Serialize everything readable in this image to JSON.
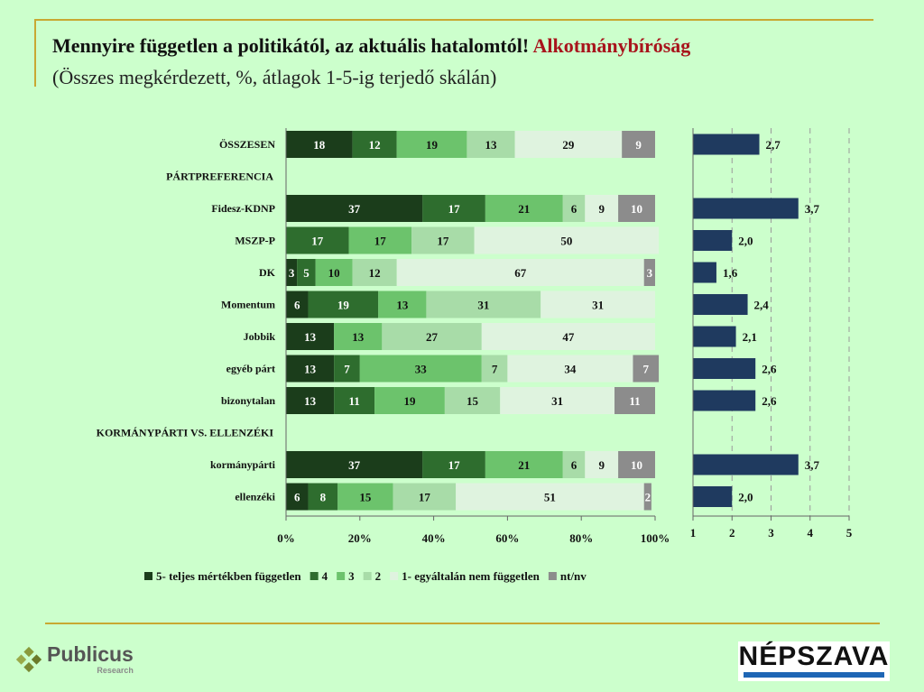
{
  "header": {
    "title_main": "Mennyire független a politikától, az aktuális hatalomtól!",
    "title_highlight": "Alkotmánybíróság",
    "subtitle": "(Összes megkérdezett, %, átlagok 1-5-ig terjedő skálán)"
  },
  "chart_data": [
    {
      "type": "bar",
      "orientation": "horizontal",
      "stacked": true,
      "xlim": [
        0,
        100
      ],
      "x_ticks": [
        "0%",
        "20%",
        "40%",
        "60%",
        "80%",
        "100%"
      ],
      "categories": [
        "ÖSSZESEN",
        "PÁRTPREFERENCIA",
        "Fidesz-KDNP",
        "MSZP-P",
        "DK",
        "Momentum",
        "Jobbik",
        "egyéb párt",
        "bizonytalan",
        "KORMÁNYPÁRTI VS. ELLENZÉKI",
        "kormánypárti",
        "ellenzéki"
      ],
      "heading_categories": [
        "PÁRTPREFERENCIA",
        "KORMÁNYPÁRTI VS. ELLENZÉKI"
      ],
      "series": [
        {
          "name": "5- teljes mértékben független",
          "color": "#1b3d1b",
          "values": [
            18,
            null,
            37,
            0,
            3,
            6,
            13,
            13,
            13,
            null,
            37,
            6
          ]
        },
        {
          "name": "4",
          "color": "#2e6d2e",
          "values": [
            12,
            null,
            17,
            17,
            5,
            19,
            0,
            7,
            11,
            null,
            17,
            8
          ]
        },
        {
          "name": "3",
          "color": "#6cc36c",
          "values": [
            19,
            null,
            21,
            17,
            10,
            13,
            13,
            33,
            19,
            null,
            21,
            15
          ]
        },
        {
          "name": "2",
          "color": "#a8dca8",
          "values": [
            13,
            null,
            6,
            17,
            12,
            31,
            27,
            7,
            15,
            null,
            6,
            17
          ]
        },
        {
          "name": "1- egyáltalán nem független",
          "color": "#dff3df",
          "values": [
            29,
            null,
            9,
            50,
            67,
            31,
            47,
            34,
            31,
            null,
            9,
            51
          ]
        },
        {
          "name": "nt/nv",
          "color": "#8c8c8c",
          "values": [
            9,
            null,
            10,
            0,
            3,
            0,
            0,
            7,
            11,
            null,
            10,
            2
          ]
        }
      ]
    },
    {
      "type": "bar",
      "orientation": "horizontal",
      "xlim": [
        1,
        5
      ],
      "x_ticks": [
        "1",
        "2",
        "3",
        "4",
        "5"
      ],
      "color": "#1f3a5f",
      "categories": [
        "ÖSSZESEN",
        "Fidesz-KDNP",
        "MSZP-P",
        "DK",
        "Momentum",
        "Jobbik",
        "egyéb párt",
        "bizonytalan",
        "kormánypárti",
        "ellenzéki"
      ],
      "values": [
        2.7,
        3.7,
        2.0,
        1.6,
        2.4,
        2.1,
        2.6,
        2.6,
        3.7,
        2.0
      ],
      "labels": [
        "2,7",
        "3,7",
        "2,0",
        "1,6",
        "2,4",
        "2,1",
        "2,6",
        "2,6",
        "3,7",
        "2,0"
      ]
    }
  ],
  "logos": {
    "publicus_name": "Publicus",
    "publicus_sub": "Research",
    "nepszava_name": "NÉPSZAVA"
  }
}
